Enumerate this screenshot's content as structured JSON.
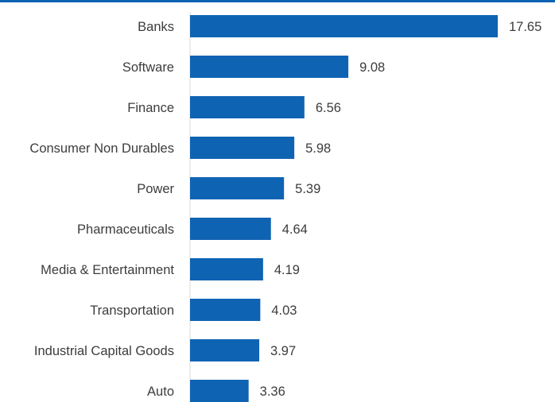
{
  "colors": {
    "bar": "#0f63b3",
    "top_rule": "#0f63b3",
    "text": "#3c3c3c",
    "axis": "#d9d9d9"
  },
  "chart_data": {
    "type": "bar",
    "orientation": "horizontal",
    "categories": [
      "Banks",
      "Software",
      "Finance",
      "Consumer Non Durables",
      "Power",
      "Pharmaceuticals",
      "Media & Entertainment",
      "Transportation",
      "Industrial Capital Goods",
      "Auto"
    ],
    "values": [
      17.65,
      9.08,
      6.56,
      5.98,
      5.39,
      4.64,
      4.19,
      4.03,
      3.97,
      3.36
    ],
    "value_labels": [
      "17.65",
      "9.08",
      "6.56",
      "5.98",
      "5.39",
      "4.64",
      "4.19",
      "4.03",
      "3.97",
      "3.36"
    ],
    "title": "",
    "xlabel": "",
    "ylabel": "",
    "xlim": [
      0,
      17.65
    ],
    "grid": false,
    "legend": "none"
  }
}
